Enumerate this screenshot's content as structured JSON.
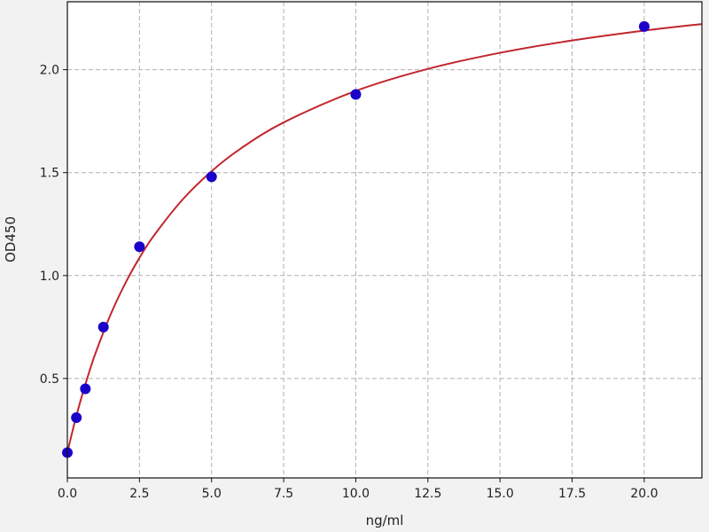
{
  "chart_data": {
    "type": "scatter",
    "title": "",
    "xlabel": "ng/ml",
    "ylabel": "OD450",
    "xlim": [
      0,
      22.0
    ],
    "ylim": [
      0.017,
      2.33
    ],
    "grid": true,
    "x_ticks": [
      0.0,
      2.5,
      5.0,
      7.5,
      10.0,
      12.5,
      15.0,
      17.5,
      20.0
    ],
    "x_tick_labels": [
      "0.0",
      "2.5",
      "5.0",
      "7.5",
      "10.0",
      "12.5",
      "15.0",
      "17.5",
      "20.0"
    ],
    "y_ticks": [
      0.5,
      1.0,
      1.5,
      2.0
    ],
    "y_tick_labels": [
      "0.5",
      "1.0",
      "1.5",
      "2.0"
    ],
    "points": {
      "x": [
        0,
        0.3125,
        0.625,
        1.25,
        2.5,
        5,
        10,
        20
      ],
      "y": [
        0.14,
        0.31,
        0.45,
        0.75,
        1.14,
        1.48,
        1.88,
        2.21
      ],
      "color": "#1a00c8"
    },
    "fit_curve": {
      "x": [
        0,
        0.25,
        0.5,
        0.75,
        1,
        1.5,
        2,
        2.5,
        3,
        4,
        5,
        6,
        7.5,
        10,
        12.5,
        15,
        17.5,
        20,
        22
      ],
      "y": [
        0.14,
        0.285,
        0.413,
        0.528,
        0.632,
        0.811,
        0.96,
        1.086,
        1.194,
        1.37,
        1.507,
        1.616,
        1.744,
        1.897,
        2.004,
        2.082,
        2.142,
        2.19,
        2.222
      ],
      "color": "#c0272d"
    }
  }
}
